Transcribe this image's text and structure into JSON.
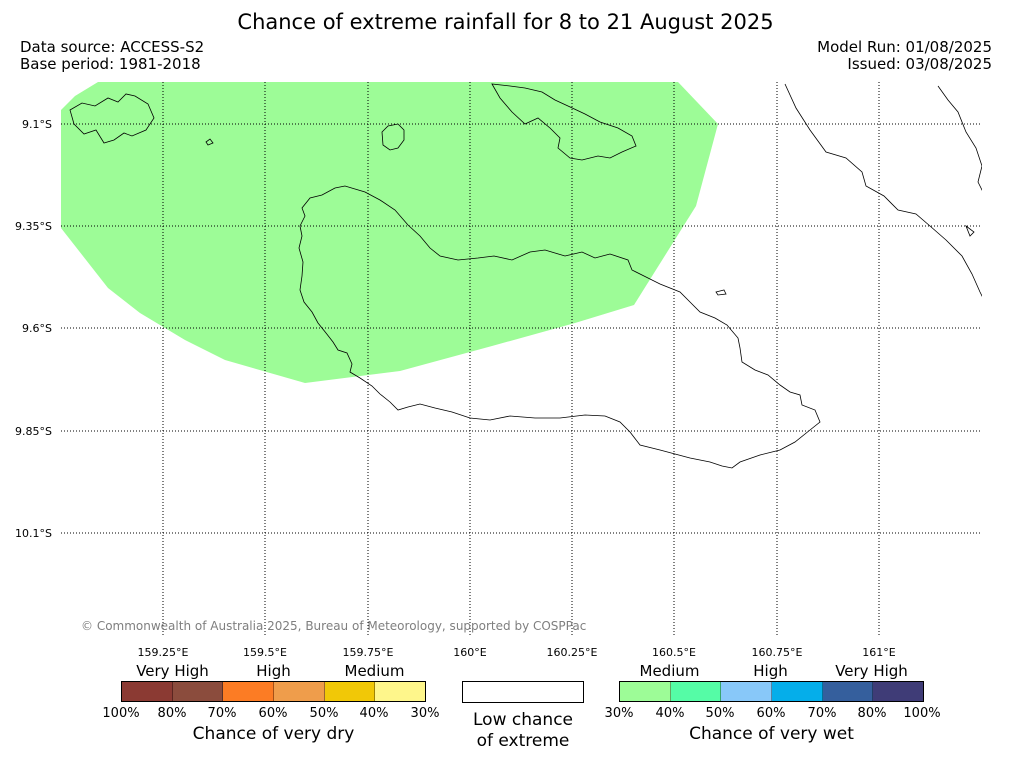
{
  "title": "Chance of extreme rainfall for 8 to 21 August 2025",
  "data_source": "Data source: ACCESS-S2",
  "base_period": "Base period: 1981-2018",
  "model_run": "Model Run: 01/08/2025",
  "issued": "Issued: 03/08/2025",
  "map": {
    "lat_labels": [
      "9.1°S",
      "9.35°S",
      "9.6°S",
      "9.85°S",
      "10.1°S"
    ],
    "lon_labels": [
      "159.25°E",
      "159.5°E",
      "159.75°E",
      "160°E",
      "160.25°E",
      "160.5°E",
      "160.75°E",
      "161°E"
    ],
    "shaded_area_color": "#9dfc97",
    "copyright": "© Commonwealth of Australia 2025, Bureau of Meteorology, supported by COSPPac"
  },
  "legend": {
    "dry": {
      "labels": [
        "Very High",
        "High",
        "Medium"
      ],
      "ticks": [
        "100%",
        "80%",
        "70%",
        "60%",
        "50%",
        "40%",
        "30%"
      ],
      "colors": [
        "#8b3a33",
        "#8b4c3d",
        "#fc7c24",
        "#ef9d4b",
        "#f1c807",
        "#fef68b"
      ],
      "caption": "Chance of very dry"
    },
    "low": {
      "caption_line1": "Low chance",
      "caption_line2": "of extreme"
    },
    "wet": {
      "labels": [
        "Medium",
        "High",
        "Very High"
      ],
      "ticks": [
        "30%",
        "40%",
        "50%",
        "60%",
        "70%",
        "80%",
        "100%"
      ],
      "colors": [
        "#9dfc97",
        "#55fca6",
        "#88c8f9",
        "#05aeea",
        "#355f9d",
        "#3f3c77"
      ],
      "caption": "Chance of very wet"
    }
  }
}
